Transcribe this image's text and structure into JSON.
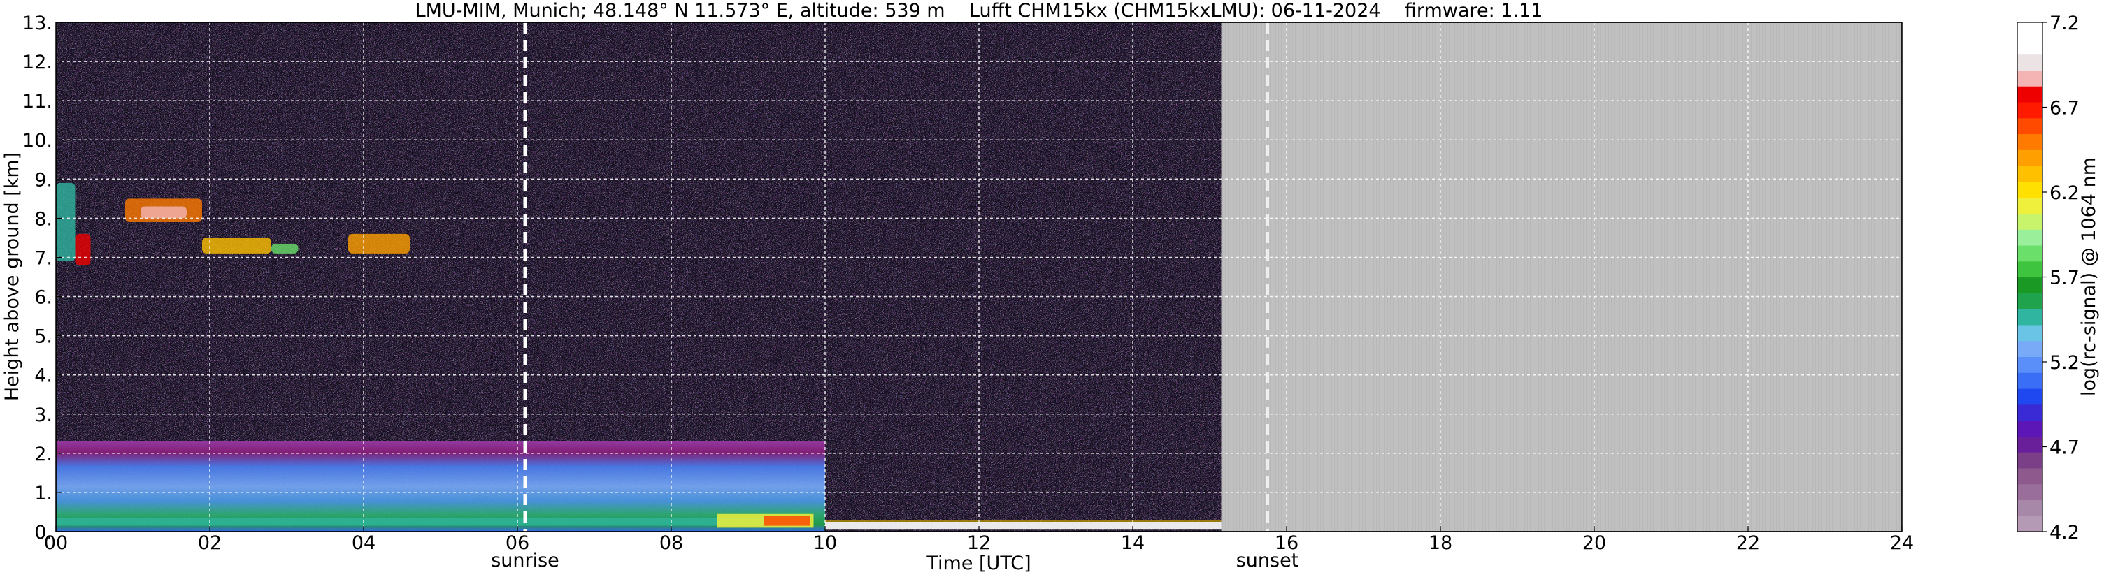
{
  "chart_data": {
    "type": "heatmap",
    "title": "LMU-MIM, Munich; 48.148° N 11.573° E, altitude: 539 m    Lufft CHM15kx (CHM15kxLMU): 06-11-2024    firmware: 1.11",
    "xlabel": "Time [UTC]",
    "ylabel": "Height above ground [km]",
    "xlim": [
      0,
      24
    ],
    "ylim": [
      0,
      13
    ],
    "x_ticks": [
      "00",
      "02",
      "04",
      "06",
      "08",
      "10",
      "12",
      "14",
      "16",
      "18",
      "20",
      "22",
      "24"
    ],
    "y_ticks": [
      "0.",
      "1.",
      "2.",
      "3.",
      "4.",
      "5.",
      "6.",
      "7.",
      "8.",
      "9.",
      "10.",
      "11.",
      "12.",
      "13."
    ],
    "grid": true,
    "data_end_hour": 15.15,
    "no_data_color": "#c0c0c0",
    "annotations": [
      {
        "label": "sunrise",
        "x": 6.1
      },
      {
        "label": "sunset",
        "x": 15.75
      }
    ],
    "colorbar": {
      "label": "log(rc-signal) @ 1064 nm",
      "ticks": [
        "4.2",
        "4.7",
        "5.2",
        "5.7",
        "6.2",
        "6.7",
        "7.2"
      ],
      "range": [
        4.2,
        7.2
      ],
      "colors": [
        "#b49ab4",
        "#a888a8",
        "#9a6e9a",
        "#8e5a8e",
        "#7a3f86",
        "#6a1f9a",
        "#5c16b8",
        "#3a2ad6",
        "#2048f0",
        "#3a6ef6",
        "#5a8ef8",
        "#78aaf8",
        "#6ac4e6",
        "#2fb5a0",
        "#1fa34c",
        "#1a9a24",
        "#3fc43f",
        "#6ae06a",
        "#9af09a",
        "#c8f46c",
        "#eef03c",
        "#ffe000",
        "#ffc000",
        "#ffa000",
        "#ff7a00",
        "#ff4a00",
        "#ff1a00",
        "#ee0000",
        "#f4b4b4",
        "#ece4e4",
        "#ffffff",
        "#ffffff"
      ]
    },
    "features": [
      {
        "name": "boundary layer",
        "x": [
          0,
          10.0
        ],
        "height_km": [
          0,
          2.3
        ]
      },
      {
        "name": "cirrus layer",
        "x": [
          0,
          4.6
        ],
        "height_km": [
          6.9,
          8.9
        ]
      }
    ]
  }
}
